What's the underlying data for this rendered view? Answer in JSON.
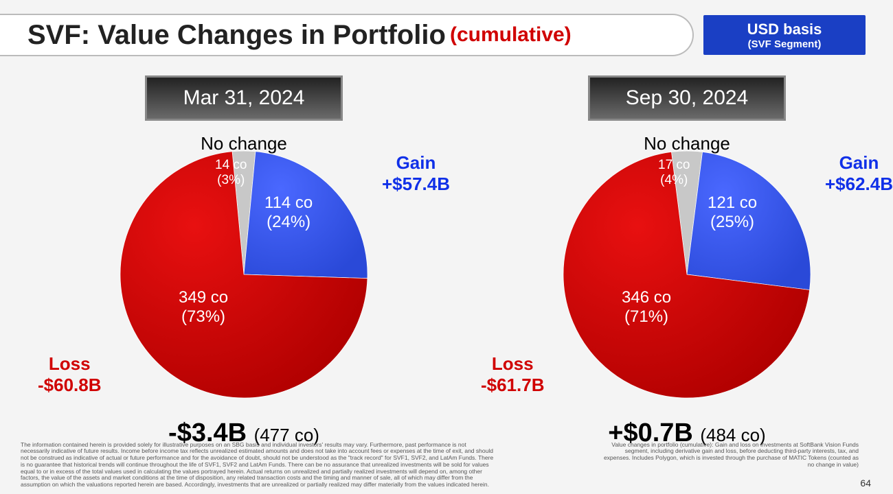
{
  "title": {
    "main": "SVF: Value Changes in Portfolio",
    "sub": "(cumulative)"
  },
  "basis": {
    "line1": "USD basis",
    "line2": "(SVF Segment)"
  },
  "page_number": "64",
  "colors": {
    "gain": "#1030e8",
    "loss": "#d00000",
    "pie_gain_fill": "#2a49d8",
    "pie_loss_fill_dark": "#b00000",
    "pie_loss_fill_light": "#e81010",
    "pie_nochange_fill": "#c8c8c8"
  },
  "charts": [
    {
      "date": "Mar 31, 2024",
      "no_change_label": "No change",
      "gain": {
        "label": "Gain",
        "value": "+$57.4B",
        "count": "114 co",
        "pct": "(24%)",
        "pct_num": 24
      },
      "loss": {
        "label": "Loss",
        "value": "-$60.8B",
        "count": "349 co",
        "pct": "(73%)",
        "pct_num": 73
      },
      "no_change": {
        "count": "14 co",
        "pct": "(3%)",
        "pct_num": 3
      },
      "total": {
        "value": "-$3.4B",
        "co": "(477 co)"
      }
    },
    {
      "date": "Sep 30, 2024",
      "no_change_label": "No change",
      "gain": {
        "label": "Gain",
        "value": "+$62.4B",
        "count": "121 co",
        "pct": "(25%)",
        "pct_num": 25
      },
      "loss": {
        "label": "Loss",
        "value": "-$61.7B",
        "count": "346 co",
        "pct": "(71%)",
        "pct_num": 71
      },
      "no_change": {
        "count": "17 co",
        "pct": "(4%)",
        "pct_num": 4
      },
      "total": {
        "value": "+$0.7B",
        "co": "(484 co)"
      }
    }
  ],
  "disclaimer_left": "The information contained herein is provided solely for illustrative purposes on an SBG basis and individual investors' results may vary. Furthermore, past performance is not necessarily indicative of future results. Income before income tax reflects unrealized estimated amounts and does not take into account fees or expenses at the time of exit, and should not be construed as indicative of actual or future performance and for the avoidance of doubt, should not be understood as the \"track record\" for SVF1, SVF2, and LatAm Funds. There is no guarantee that historical trends will continue throughout the life of SVF1, SVF2 and LatAm Funds. There can be no assurance that unrealized investments will be sold for values equal to or in excess of the total values used in calculating the values portrayed herein. Actual returns on unrealized and partially realized investments will depend on, among other factors, the value of the assets and market conditions at the time of disposition, any related transaction costs and the timing and manner of sale, all of which may differ from the assumption on which the valuations reported herein are based. Accordingly, investments that are unrealized or partially realized may differ materially from the values indicated herein.",
  "disclaimer_right": "Value changes in portfolio (cumulative): Gain and loss on investments at SoftBank Vision Funds segment, including derivative gain and loss, before deducting third-party interests, tax, and expenses. Includes Polygon, which is invested through the purchase of MATIC Tokens (counted as no change in value)"
}
